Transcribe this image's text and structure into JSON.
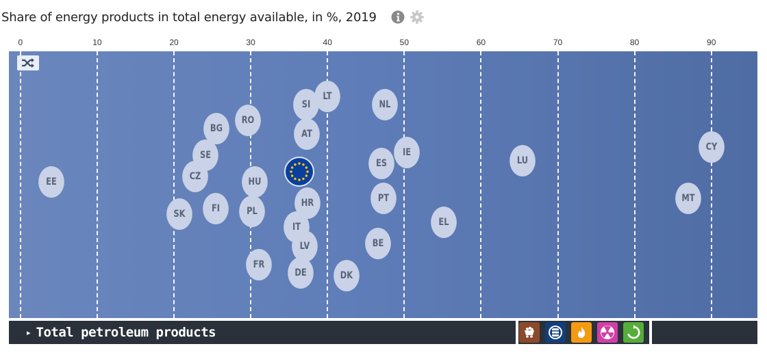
{
  "header": {
    "title": "Share of energy products in total energy available, in %, 2019",
    "info_icon": "info-icon",
    "settings_icon": "gear-icon"
  },
  "chart_data": {
    "type": "scatter",
    "title": "Share of energy products in total energy available, in %, 2019",
    "xlabel": "",
    "ylabel": "",
    "xlim": [
      -1.5,
      96
    ],
    "xticks": [
      0,
      10,
      20,
      30,
      40,
      50,
      60,
      70,
      80,
      90
    ],
    "grid": true,
    "legend": "none",
    "bubble_color": "#c9d2e6",
    "plot_background": "#5f7db8",
    "eu_marker_color": "#0b3f9e",
    "points": [
      {
        "label": "EE",
        "x": 4.0,
        "lane": 0.49
      },
      {
        "label": "SK",
        "x": 20.7,
        "lane": 0.61
      },
      {
        "label": "CZ",
        "x": 22.8,
        "lane": 0.47
      },
      {
        "label": "SE",
        "x": 24.1,
        "lane": 0.39
      },
      {
        "label": "FI",
        "x": 25.4,
        "lane": 0.59
      },
      {
        "label": "BG",
        "x": 25.5,
        "lane": 0.29
      },
      {
        "label": "RO",
        "x": 29.6,
        "lane": 0.26
      },
      {
        "label": "PL",
        "x": 30.2,
        "lane": 0.6
      },
      {
        "label": "HU",
        "x": 30.5,
        "lane": 0.49
      },
      {
        "label": "FR",
        "x": 31.1,
        "lane": 0.8
      },
      {
        "label": "IT",
        "x": 36.0,
        "lane": 0.66
      },
      {
        "label": "DE",
        "x": 36.5,
        "lane": 0.83
      },
      {
        "label": "LV",
        "x": 37.0,
        "lane": 0.73
      },
      {
        "label": "AT",
        "x": 37.3,
        "lane": 0.31
      },
      {
        "label": "SI",
        "x": 37.2,
        "lane": 0.2
      },
      {
        "label": "HR",
        "x": 37.4,
        "lane": 0.57
      },
      {
        "label": "LT",
        "x": 40.0,
        "lane": 0.17
      },
      {
        "label": "DK",
        "x": 42.5,
        "lane": 0.84
      },
      {
        "label": "BE",
        "x": 46.6,
        "lane": 0.72
      },
      {
        "label": "ES",
        "x": 47.0,
        "lane": 0.42
      },
      {
        "label": "PT",
        "x": 47.3,
        "lane": 0.55
      },
      {
        "label": "NL",
        "x": 47.5,
        "lane": 0.2
      },
      {
        "label": "IE",
        "x": 50.3,
        "lane": 0.38
      },
      {
        "label": "EL",
        "x": 55.1,
        "lane": 0.64
      },
      {
        "label": "LU",
        "x": 65.4,
        "lane": 0.41
      },
      {
        "label": "MT",
        "x": 87.0,
        "lane": 0.55
      },
      {
        "label": "CY",
        "x": 90.0,
        "lane": 0.36
      }
    ],
    "eu_average": {
      "x": 36.3,
      "lane": 0.45
    }
  },
  "controls": {
    "shuffle_icon": "shuffle-icon",
    "product_label": "Total petroleum products",
    "product_arrow": "▸",
    "product_buttons": [
      {
        "name": "coal-button",
        "icon": "coal-cart-icon",
        "color": "#8b4a2b"
      },
      {
        "name": "oil-button",
        "icon": "oil-barrel-icon",
        "color": "#123f7a"
      },
      {
        "name": "gas-button",
        "icon": "flame-icon",
        "color": "#f39a12"
      },
      {
        "name": "nuclear-button",
        "icon": "radiation-icon",
        "color": "#d13fa6"
      },
      {
        "name": "renewables-button",
        "icon": "recycle-icon",
        "color": "#56ad3a"
      }
    ]
  }
}
